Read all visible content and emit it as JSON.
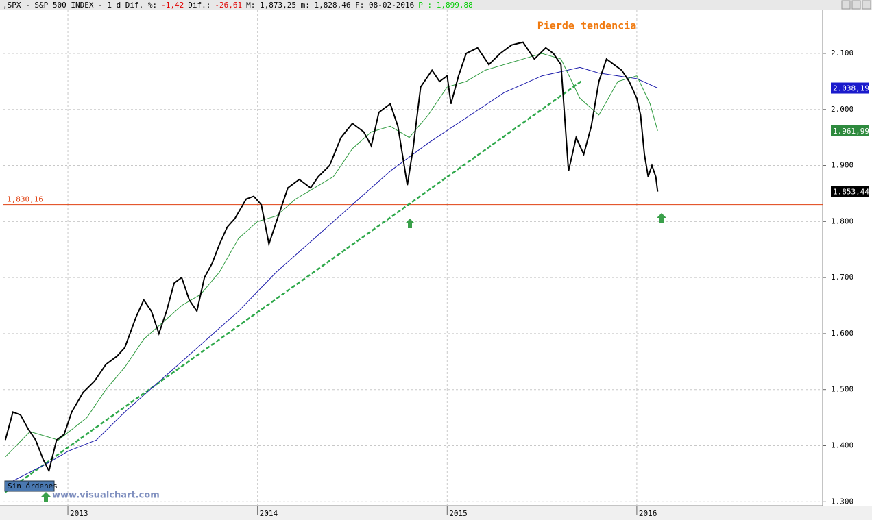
{
  "header": [
    {
      "text": ",SPX - S&P 500 INDEX -  1 d Dif. %:",
      "color": "#000000"
    },
    {
      "text": "-1,42",
      "color": "#e00000"
    },
    {
      "text": "Dif.:",
      "color": "#000000"
    },
    {
      "text": "-26,61",
      "color": "#e00000"
    },
    {
      "text": "M: 1,873,25 m: 1,828,46 F: 08-02-2016",
      "color": "#000000"
    },
    {
      "text": "P : 1,899,88",
      "color": "#00cc00"
    }
  ],
  "watermark": "www.visualchart.com",
  "chart_data": {
    "type": "line",
    "title": "Pierde tendencia",
    "note": "Sin órdenes",
    "xlim": [
      2012.66,
      2016.98
    ],
    "xticks": [
      2013,
      2014,
      2015,
      2016
    ],
    "ylim": [
      1293,
      2177
    ],
    "yticks": [
      {
        "value": 1300,
        "label": "1.300"
      },
      {
        "value": 1400,
        "label": "1.400"
      },
      {
        "value": 1500,
        "label": "1.500"
      },
      {
        "value": 1600,
        "label": "1.600"
      },
      {
        "value": 1700,
        "label": "1.700"
      },
      {
        "value": 1800,
        "label": "1.800"
      },
      {
        "value": 1900,
        "label": "1.900"
      },
      {
        "value": 2000,
        "label": "2.000"
      },
      {
        "value": 2100,
        "label": "2.100"
      }
    ],
    "grid": true,
    "series": [
      {
        "name": "SPX",
        "color": "#000000",
        "x": [
          2012.67,
          2012.71,
          2012.75,
          2012.79,
          2012.83,
          2012.87,
          2012.9,
          2012.94,
          2012.98,
          2013.02,
          2013.08,
          2013.14,
          2013.2,
          2013.26,
          2013.3,
          2013.36,
          2013.4,
          2013.44,
          2013.48,
          2013.52,
          2013.56,
          2013.6,
          2013.64,
          2013.68,
          2013.72,
          2013.76,
          2013.8,
          2013.84,
          2013.88,
          2013.94,
          2013.98,
          2014.02,
          2014.06,
          2014.1,
          2014.16,
          2014.22,
          2014.28,
          2014.32,
          2014.38,
          2014.44,
          2014.5,
          2014.56,
          2014.6,
          2014.64,
          2014.7,
          2014.74,
          2014.79,
          2014.82,
          2014.86,
          2014.92,
          2014.96,
          2015.0,
          2015.02,
          2015.06,
          2015.1,
          2015.16,
          2015.22,
          2015.28,
          2015.34,
          2015.4,
          2015.46,
          2015.52,
          2015.56,
          2015.6,
          2015.64,
          2015.68,
          2015.72,
          2015.76,
          2015.8,
          2015.84,
          2015.88,
          2015.92,
          2015.96,
          2016.0,
          2016.02,
          2016.04,
          2016.06,
          2016.08,
          2016.1,
          2016.11
        ],
        "values": [
          1410,
          1460,
          1455,
          1430,
          1410,
          1375,
          1355,
          1410,
          1420,
          1460,
          1495,
          1515,
          1545,
          1560,
          1575,
          1630,
          1660,
          1640,
          1600,
          1640,
          1690,
          1700,
          1660,
          1640,
          1700,
          1725,
          1760,
          1790,
          1805,
          1840,
          1845,
          1830,
          1760,
          1800,
          1860,
          1875,
          1860,
          1880,
          1900,
          1950,
          1975,
          1960,
          1935,
          1995,
          2010,
          1970,
          1865,
          1930,
          2040,
          2070,
          2050,
          2060,
          2010,
          2060,
          2100,
          2110,
          2080,
          2100,
          2115,
          2120,
          2090,
          2110,
          2100,
          2080,
          1890,
          1950,
          1920,
          1970,
          2050,
          2090,
          2080,
          2070,
          2050,
          2020,
          1990,
          1920,
          1880,
          1900,
          1880,
          1853.44
        ]
      },
      {
        "name": "MA50",
        "color": "#2e9a3e",
        "x": [
          2012.67,
          2012.8,
          2012.95,
          2013.1,
          2013.2,
          2013.3,
          2013.4,
          2013.5,
          2013.6,
          2013.7,
          2013.8,
          2013.9,
          2014.0,
          2014.1,
          2014.2,
          2014.3,
          2014.4,
          2014.5,
          2014.6,
          2014.7,
          2014.8,
          2014.9,
          2015.0,
          2015.1,
          2015.2,
          2015.3,
          2015.4,
          2015.5,
          2015.6,
          2015.7,
          2015.8,
          2015.9,
          2016.0,
          2016.07,
          2016.11
        ],
        "values": [
          1380,
          1425,
          1410,
          1450,
          1500,
          1540,
          1590,
          1620,
          1650,
          1670,
          1710,
          1770,
          1800,
          1810,
          1840,
          1860,
          1880,
          1930,
          1960,
          1970,
          1950,
          1990,
          2040,
          2050,
          2070,
          2080,
          2090,
          2100,
          2090,
          2020,
          1990,
          2050,
          2060,
          2010,
          1961.99
        ]
      },
      {
        "name": "MA200",
        "color": "#1a1aaa",
        "x": [
          2012.67,
          2012.9,
          2013.0,
          2013.15,
          2013.3,
          2013.5,
          2013.7,
          2013.9,
          2014.1,
          2014.3,
          2014.5,
          2014.7,
          2014.9,
          2015.1,
          2015.3,
          2015.5,
          2015.7,
          2015.8,
          2015.9,
          2016.0,
          2016.11
        ],
        "values": [
          1330,
          1370,
          1390,
          1410,
          1460,
          1520,
          1580,
          1640,
          1710,
          1770,
          1830,
          1890,
          1940,
          1985,
          2030,
          2060,
          2075,
          2065,
          2060,
          2055,
          2038.19
        ]
      }
    ],
    "trendline": {
      "x": [
        2012.67,
        2015.71
      ],
      "values": [
        1317,
        2051
      ],
      "color": "#2ea84a"
    },
    "hline": {
      "value": 1830.16,
      "label": "1,830,16",
      "color": "#e04010"
    },
    "markers": [
      {
        "value": 2038.19,
        "label": "2.038,19",
        "color": "#1a1acc"
      },
      {
        "value": 1961.99,
        "label": "1.961,99",
        "color": "#2e8a3e"
      },
      {
        "value": 1853.44,
        "label": "1.853,44",
        "color": "#000000"
      }
    ]
  }
}
